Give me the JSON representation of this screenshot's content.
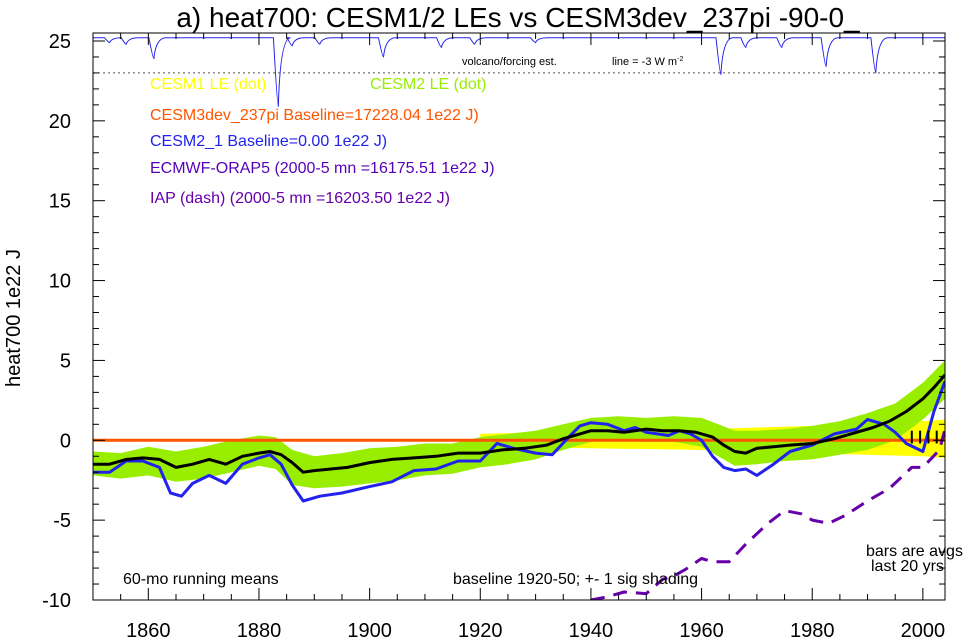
{
  "title": "a) heat700: CESM1/2 LEs vs CESM3dev_237pi -90-0_",
  "chart_data": {
    "type": "line",
    "ylabel": "heat700 1e22 J",
    "xlabel": "",
    "xlim": [
      1850,
      2004
    ],
    "ylim": [
      -10,
      25.5
    ],
    "x_ticks": [
      1860,
      1880,
      1900,
      1920,
      1940,
      1960,
      1980,
      2000
    ],
    "y_ticks": [
      -10,
      -5,
      0,
      5,
      10,
      15,
      20,
      25
    ],
    "grid": false,
    "legend_placement": "top-left",
    "legend": [
      {
        "text": "CESM1 LE (dot)",
        "color": "#ffff00"
      },
      {
        "text": "CESM2 LE (dot)",
        "color": "#99ee00"
      },
      {
        "text": "CESM3dev_237pi Baseline=17228.04 1e22 J)",
        "color": "#ff5500"
      },
      {
        "text": "CESM2_1 Baseline=0.00 1e22 J)",
        "color": "#2222ee"
      },
      {
        "text": "ECMWF-ORAP5 (2000-5 mn =16175.51 1e22 J)",
        "color": "#5500bb"
      },
      {
        "text": "IAP (dash) (2000-5 mn =16203.50 1e22 J)",
        "color": "#6600aa"
      }
    ],
    "annotations": {
      "volcano_label": "volcano/forcing est.",
      "line_label": "line = -3 W m",
      "line_label_sup": "-2",
      "running_means": "60-mo running means",
      "baseline_note": "baseline 1920-50; +- 1 sig shading",
      "bars_note_1": "bars are avgs",
      "bars_note_2": "last 20 yrs"
    },
    "volcano_reference_y": 23,
    "volcano_baseline_y": 25.2,
    "volcano_dips": [
      {
        "x": 1853,
        "depth": 0.3
      },
      {
        "x": 1856,
        "depth": 0.4
      },
      {
        "x": 1861,
        "depth": 1.3
      },
      {
        "x": 1883.5,
        "depth": 4.3
      },
      {
        "x": 1886,
        "depth": 0.5
      },
      {
        "x": 1891,
        "depth": 0.4
      },
      {
        "x": 1902.5,
        "depth": 1.2
      },
      {
        "x": 1913,
        "depth": 0.6
      },
      {
        "x": 1919,
        "depth": 0.4
      },
      {
        "x": 1930,
        "depth": 0.3
      },
      {
        "x": 1963.5,
        "depth": 2.3
      },
      {
        "x": 1968,
        "depth": 0.6
      },
      {
        "x": 1974.5,
        "depth": 0.6
      },
      {
        "x": 1982.5,
        "depth": 1.8
      },
      {
        "x": 1991.5,
        "depth": 2.2
      }
    ],
    "series": [
      {
        "name": "CESM1 LE (dot)",
        "color": "#ffff00",
        "kind": "band",
        "x": [
          1920,
          1940,
          1960,
          1980,
          1990,
          2000,
          2004
        ],
        "upper": [
          0.4,
          0.6,
          0.7,
          0.9,
          1.0,
          1.2,
          1.3
        ],
        "lower": [
          -0.4,
          -0.5,
          -0.6,
          -0.8,
          -0.9,
          -1.0,
          -1.1
        ]
      },
      {
        "name": "CESM2 LE (dot)",
        "color": "#99ee00",
        "kind": "band",
        "x": [
          1850,
          1855,
          1860,
          1865,
          1870,
          1875,
          1880,
          1883,
          1886,
          1890,
          1895,
          1900,
          1905,
          1910,
          1915,
          1920,
          1925,
          1930,
          1935,
          1940,
          1945,
          1950,
          1955,
          1960,
          1963,
          1966,
          1970,
          1975,
          1980,
          1985,
          1990,
          1995,
          2000,
          2004
        ],
        "upper": [
          -0.7,
          -0.8,
          -0.4,
          -0.7,
          -0.4,
          0.0,
          0.3,
          0.2,
          -0.6,
          -1.0,
          -0.8,
          -0.5,
          -0.4,
          -0.2,
          -0.2,
          0.2,
          0.4,
          0.6,
          1.0,
          1.4,
          1.5,
          1.4,
          1.5,
          1.4,
          1.0,
          0.6,
          0.6,
          0.7,
          0.9,
          1.2,
          1.7,
          2.3,
          3.6,
          5.0
        ],
        "lower": [
          -2.2,
          -2.4,
          -2.2,
          -2.6,
          -2.4,
          -2.0,
          -1.6,
          -1.8,
          -2.8,
          -3.0,
          -2.9,
          -2.7,
          -2.5,
          -2.2,
          -2.1,
          -1.7,
          -1.5,
          -1.2,
          -0.6,
          -0.1,
          0.0,
          -0.1,
          -0.1,
          -0.4,
          -1.0,
          -1.6,
          -1.5,
          -1.3,
          -1.2,
          -0.9,
          -0.6,
          0.0,
          1.3,
          2.6
        ]
      },
      {
        "name": "CESM3dev_237pi",
        "color": "#ff5500",
        "kind": "line",
        "x": [
          1850,
          2004
        ],
        "values": [
          0.0,
          0.0
        ]
      },
      {
        "name": "CESM2_1",
        "color": "#2222ee",
        "kind": "line",
        "x": [
          1850,
          1853,
          1856,
          1859,
          1862,
          1864,
          1866,
          1868,
          1871,
          1874,
          1877,
          1880,
          1882,
          1884,
          1886,
          1888,
          1891,
          1895,
          1900,
          1904,
          1908,
          1912,
          1916,
          1920,
          1923,
          1926,
          1930,
          1933,
          1936,
          1938,
          1940,
          1943,
          1946,
          1948,
          1950,
          1952,
          1954,
          1956,
          1958,
          1960,
          1962,
          1964,
          1966,
          1968,
          1970,
          1973,
          1976,
          1980,
          1984,
          1988,
          1990,
          1993,
          1995,
          1997,
          2000,
          2002,
          2004
        ],
        "values": [
          -2.0,
          -2.0,
          -1.3,
          -1.3,
          -1.7,
          -3.3,
          -3.5,
          -2.7,
          -2.2,
          -2.7,
          -1.5,
          -1.1,
          -0.9,
          -1.5,
          -2.8,
          -3.8,
          -3.5,
          -3.3,
          -2.9,
          -2.6,
          -1.9,
          -1.8,
          -1.3,
          -1.3,
          -0.2,
          -0.5,
          -0.8,
          -0.9,
          0.2,
          0.9,
          1.1,
          1.0,
          0.6,
          0.8,
          0.5,
          0.4,
          0.3,
          0.6,
          0.4,
          0.0,
          -1.0,
          -1.7,
          -1.9,
          -1.8,
          -2.2,
          -1.5,
          -0.7,
          -0.3,
          0.4,
          0.7,
          1.3,
          1.0,
          0.5,
          -0.2,
          -0.7,
          1.8,
          3.7
        ]
      },
      {
        "name": "CESM2 ensemble mean",
        "color": "#000000",
        "kind": "line",
        "x": [
          1850,
          1853,
          1856,
          1859,
          1862,
          1865,
          1868,
          1871,
          1874,
          1877,
          1880,
          1882,
          1884,
          1886,
          1888,
          1890,
          1893,
          1896,
          1900,
          1904,
          1908,
          1912,
          1916,
          1920,
          1924,
          1928,
          1932,
          1935,
          1938,
          1940,
          1943,
          1946,
          1950,
          1953,
          1956,
          1959,
          1962,
          1964,
          1966,
          1968,
          1970,
          1973,
          1976,
          1980,
          1984,
          1988,
          1991,
          1994,
          1997,
          2000,
          2002,
          2004
        ],
        "values": [
          -1.5,
          -1.5,
          -1.2,
          -1.1,
          -1.2,
          -1.7,
          -1.5,
          -1.2,
          -1.5,
          -1.0,
          -0.8,
          -0.7,
          -0.9,
          -1.4,
          -2.0,
          -1.9,
          -1.8,
          -1.7,
          -1.4,
          -1.2,
          -1.1,
          -1.0,
          -0.8,
          -0.8,
          -0.6,
          -0.5,
          -0.3,
          0.1,
          0.4,
          0.6,
          0.6,
          0.5,
          0.7,
          0.6,
          0.6,
          0.5,
          0.2,
          -0.3,
          -0.7,
          -0.8,
          -0.5,
          -0.4,
          -0.3,
          -0.2,
          0.1,
          0.5,
          0.8,
          1.2,
          1.8,
          2.6,
          3.3,
          4.1
        ]
      },
      {
        "name": "IAP (dash)",
        "color": "#6600aa",
        "kind": "dashed",
        "x": [
          1940,
          1943,
          1946,
          1950,
          1953,
          1955,
          1957,
          1960,
          1962,
          1965,
          1968,
          1972,
          1975,
          1978,
          1980,
          1983,
          1986,
          1990,
          1994,
          1998,
          2000,
          2003,
          2004
        ],
        "values": [
          -10.0,
          -9.8,
          -9.5,
          -9.6,
          -8.7,
          -8.5,
          -8.1,
          -7.4,
          -7.6,
          -7.6,
          -6.5,
          -5.2,
          -4.4,
          -4.6,
          -5.0,
          -5.2,
          -4.7,
          -3.8,
          -3.0,
          -1.7,
          -1.7,
          -0.6,
          0.7
        ]
      }
    ]
  }
}
